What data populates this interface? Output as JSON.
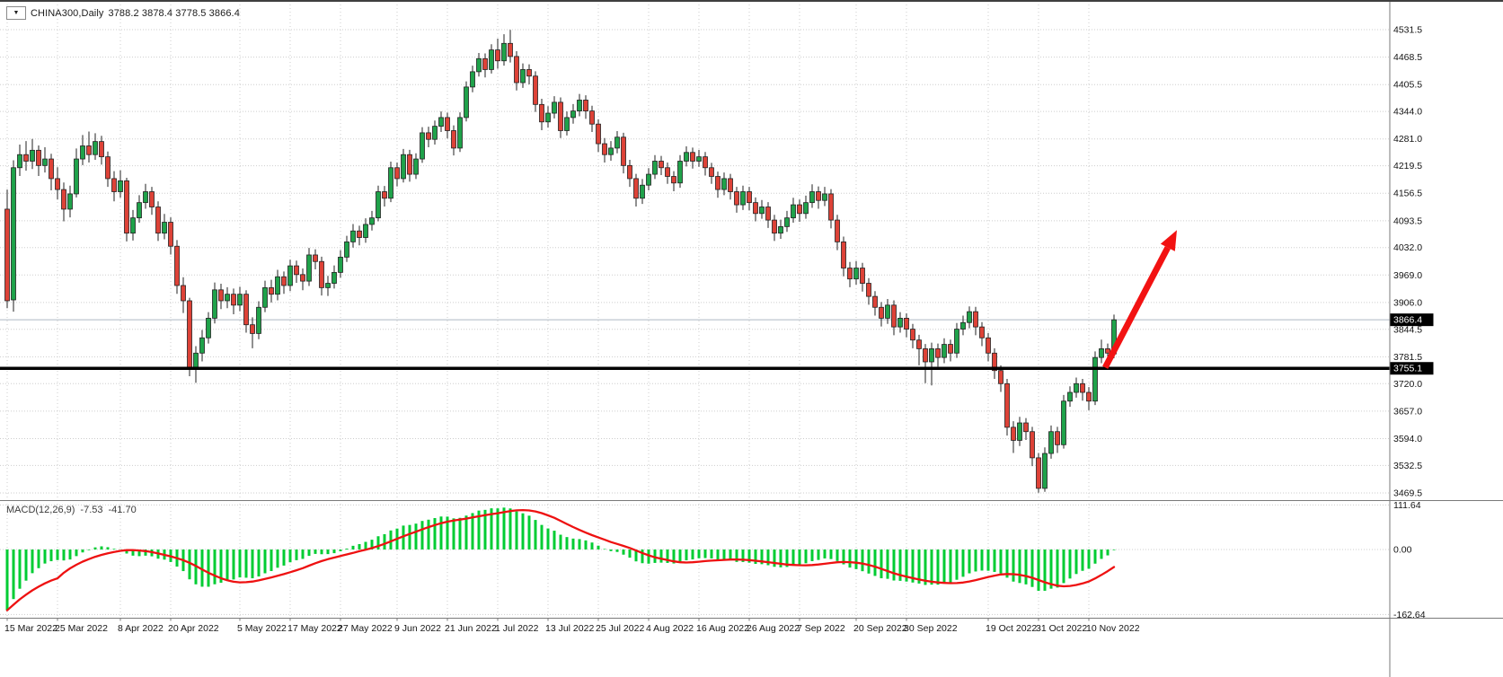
{
  "symbol_bar": {
    "dropdown_icon": "▼",
    "symbol_label": "CHINA300,Daily",
    "ohlc_text": "3788.2 3878.4 3778.5 3866.4"
  },
  "macd_panel": {
    "label": "MACD(12,26,9)",
    "main_value": "-7.53",
    "signal_value": "-41.70",
    "axis_ticks": [
      "111.64",
      "0.00",
      "-162.64"
    ]
  },
  "price_markers": {
    "current_badge": "3866.4",
    "support_badge": "3755.1"
  },
  "colors": {
    "bull": "#1fa24a",
    "bear": "#dd4237",
    "candle_outline": "#222222",
    "grid": "#cdcdcd",
    "separator": "#7a7a7a",
    "axis_text": "#141414",
    "badge_bg": "#000000",
    "badge_text": "#ffffff",
    "macd_hist": "#00cc33",
    "macd_signal": "#ee1111",
    "support_line": "#000000",
    "current_price_line": "#aeb9c3",
    "arrow": "#f21212"
  },
  "chart_data": {
    "type": "candlestick",
    "title": "CHINA300 Daily",
    "timeframe": "Daily",
    "y_range": [
      3469.5,
      4531.5
    ],
    "grid": true,
    "current_price": 3866.4,
    "support_level": 3755.1,
    "y_tick_labels": [
      "4531.5",
      "4468.5",
      "4405.5",
      "4344.0",
      "4281.0",
      "4219.5",
      "4156.5",
      "4093.5",
      "4032.0",
      "3969.0",
      "3906.0",
      "3844.5",
      "3781.5",
      "3720.0",
      "3657.0",
      "3594.0",
      "3532.5",
      "3469.5"
    ],
    "x_tick_labels": [
      {
        "i": 0,
        "label": "15 Mar 2022"
      },
      {
        "i": 8,
        "label": "25 Mar 2022"
      },
      {
        "i": 18,
        "label": "8 Apr 2022"
      },
      {
        "i": 26,
        "label": "20 Apr 2022"
      },
      {
        "i": 37,
        "label": "5 May 2022"
      },
      {
        "i": 45,
        "label": "17 May 2022"
      },
      {
        "i": 53,
        "label": "27 May 2022"
      },
      {
        "i": 62,
        "label": "9 Jun 2022"
      },
      {
        "i": 70,
        "label": "21 Jun 2022"
      },
      {
        "i": 78,
        "label": "1 Jul 2022"
      },
      {
        "i": 86,
        "label": "13 Jul 2022"
      },
      {
        "i": 94,
        "label": "25 Jul 2022"
      },
      {
        "i": 102,
        "label": "4 Aug 2022"
      },
      {
        "i": 110,
        "label": "16 Aug 2022"
      },
      {
        "i": 118,
        "label": "26 Aug 2022"
      },
      {
        "i": 126,
        "label": "7 Sep 2022"
      },
      {
        "i": 135,
        "label": "20 Sep 2022"
      },
      {
        "i": 143,
        "label": "30 Sep 2022"
      },
      {
        "i": 156,
        "label": "19 Oct 2022"
      },
      {
        "i": 164,
        "label": "31 Oct 2022"
      },
      {
        "i": 172,
        "label": "10 Nov 2022"
      }
    ],
    "indicator": {
      "type": "MACD",
      "fast": 12,
      "slow": 26,
      "signal": 9,
      "last_main": -7.53,
      "last_signal": -41.7,
      "seed_ema12": 4020,
      "seed_ema26": 4175,
      "macd_axis": [
        111.64,
        0.0,
        -162.64
      ]
    },
    "annotation_arrow": {
      "from": {
        "i": 174.6,
        "price": 3757
      },
      "to": {
        "i": 186,
        "price": 4072
      }
    },
    "ohlc": [
      [
        4120,
        4165,
        3893,
        3910
      ],
      [
        3912,
        4232,
        3885,
        4215
      ],
      [
        4215,
        4268,
        4196,
        4245
      ],
      [
        4245,
        4276,
        4208,
        4230
      ],
      [
        4230,
        4281,
        4212,
        4255
      ],
      [
        4255,
        4266,
        4196,
        4220
      ],
      [
        4220,
        4262,
        4204,
        4235
      ],
      [
        4235,
        4247,
        4163,
        4190
      ],
      [
        4190,
        4216,
        4142,
        4165
      ],
      [
        4165,
        4181,
        4092,
        4120
      ],
      [
        4120,
        4174,
        4101,
        4155
      ],
      [
        4155,
        4259,
        4147,
        4235
      ],
      [
        4235,
        4290,
        4221,
        4265
      ],
      [
        4265,
        4298,
        4227,
        4245
      ],
      [
        4245,
        4294,
        4233,
        4275
      ],
      [
        4275,
        4288,
        4222,
        4240
      ],
      [
        4240,
        4252,
        4171,
        4190
      ],
      [
        4190,
        4207,
        4138,
        4160
      ],
      [
        4160,
        4209,
        4146,
        4185
      ],
      [
        4185,
        4192,
        4046,
        4065
      ],
      [
        4065,
        4118,
        4048,
        4100
      ],
      [
        4100,
        4152,
        4089,
        4135
      ],
      [
        4135,
        4178,
        4121,
        4160
      ],
      [
        4160,
        4171,
        4107,
        4125
      ],
      [
        4125,
        4138,
        4047,
        4065
      ],
      [
        4065,
        4109,
        4051,
        4090
      ],
      [
        4090,
        4101,
        4016,
        4035
      ],
      [
        4035,
        4049,
        3926,
        3945
      ],
      [
        3945,
        3964,
        3882,
        3910
      ],
      [
        3910,
        3917,
        3737,
        3755
      ],
      [
        3755,
        3806,
        3722,
        3790
      ],
      [
        3790,
        3843,
        3771,
        3825
      ],
      [
        3825,
        3884,
        3812,
        3870
      ],
      [
        3870,
        3952,
        3858,
        3935
      ],
      [
        3935,
        3949,
        3891,
        3910
      ],
      [
        3910,
        3941,
        3893,
        3925
      ],
      [
        3925,
        3938,
        3879,
        3900
      ],
      [
        3900,
        3942,
        3886,
        3925
      ],
      [
        3925,
        3934,
        3837,
        3855
      ],
      [
        3855,
        3872,
        3801,
        3835
      ],
      [
        3835,
        3909,
        3822,
        3895
      ],
      [
        3895,
        3956,
        3884,
        3940
      ],
      [
        3940,
        3958,
        3906,
        3925
      ],
      [
        3925,
        3981,
        3911,
        3965
      ],
      [
        3965,
        3977,
        3926,
        3945
      ],
      [
        3945,
        4004,
        3932,
        3990
      ],
      [
        3990,
        4002,
        3951,
        3970
      ],
      [
        3970,
        3984,
        3934,
        3955
      ],
      [
        3955,
        4031,
        3944,
        4015
      ],
      [
        4015,
        4028,
        3982,
        4000
      ],
      [
        4000,
        4011,
        3922,
        3940
      ],
      [
        3940,
        3967,
        3921,
        3950
      ],
      [
        3950,
        3991,
        3938,
        3975
      ],
      [
        3975,
        4026,
        3963,
        4010
      ],
      [
        4010,
        4059,
        3999,
        4045
      ],
      [
        4045,
        4086,
        4032,
        4070
      ],
      [
        4070,
        4082,
        4037,
        4055
      ],
      [
        4055,
        4099,
        4043,
        4085
      ],
      [
        4085,
        4116,
        4071,
        4100
      ],
      [
        4100,
        4174,
        4092,
        4160
      ],
      [
        4160,
        4173,
        4126,
        4145
      ],
      [
        4145,
        4229,
        4136,
        4215
      ],
      [
        4215,
        4227,
        4172,
        4190
      ],
      [
        4190,
        4258,
        4181,
        4245
      ],
      [
        4245,
        4256,
        4183,
        4200
      ],
      [
        4200,
        4248,
        4189,
        4235
      ],
      [
        4235,
        4308,
        4226,
        4295
      ],
      [
        4295,
        4309,
        4262,
        4280
      ],
      [
        4280,
        4323,
        4268,
        4310
      ],
      [
        4310,
        4344,
        4297,
        4330
      ],
      [
        4330,
        4341,
        4282,
        4300
      ],
      [
        4300,
        4312,
        4243,
        4260
      ],
      [
        4260,
        4342,
        4251,
        4330
      ],
      [
        4330,
        4413,
        4321,
        4400
      ],
      [
        4400,
        4449,
        4388,
        4435
      ],
      [
        4435,
        4478,
        4424,
        4465
      ],
      [
        4465,
        4477,
        4422,
        4440
      ],
      [
        4440,
        4498,
        4431,
        4485
      ],
      [
        4485,
        4511,
        4442,
        4460
      ],
      [
        4460,
        4521,
        4449,
        4500
      ],
      [
        4500,
        4531,
        4456,
        4470
      ],
      [
        4470,
        4482,
        4392,
        4410
      ],
      [
        4410,
        4454,
        4398,
        4440
      ],
      [
        4440,
        4452,
        4406,
        4425
      ],
      [
        4425,
        4436,
        4343,
        4360
      ],
      [
        4360,
        4373,
        4301,
        4320
      ],
      [
        4320,
        4356,
        4307,
        4340
      ],
      [
        4340,
        4379,
        4328,
        4365
      ],
      [
        4365,
        4376,
        4283,
        4300
      ],
      [
        4300,
        4344,
        4289,
        4330
      ],
      [
        4330,
        4361,
        4316,
        4345
      ],
      [
        4345,
        4384,
        4333,
        4370
      ],
      [
        4370,
        4381,
        4327,
        4345
      ],
      [
        4345,
        4357,
        4297,
        4315
      ],
      [
        4315,
        4326,
        4251,
        4270
      ],
      [
        4270,
        4283,
        4227,
        4245
      ],
      [
        4245,
        4276,
        4231,
        4260
      ],
      [
        4260,
        4299,
        4248,
        4285
      ],
      [
        4285,
        4295,
        4202,
        4220
      ],
      [
        4220,
        4233,
        4171,
        4190
      ],
      [
        4190,
        4201,
        4126,
        4145
      ],
      [
        4145,
        4189,
        4132,
        4175
      ],
      [
        4175,
        4214,
        4163,
        4200
      ],
      [
        4200,
        4244,
        4189,
        4230
      ],
      [
        4230,
        4242,
        4198,
        4215
      ],
      [
        4215,
        4227,
        4178,
        4195
      ],
      [
        4195,
        4207,
        4161,
        4180
      ],
      [
        4180,
        4244,
        4169,
        4230
      ],
      [
        4230,
        4264,
        4218,
        4250
      ],
      [
        4250,
        4261,
        4213,
        4230
      ],
      [
        4230,
        4256,
        4217,
        4240
      ],
      [
        4240,
        4251,
        4197,
        4215
      ],
      [
        4215,
        4226,
        4178,
        4195
      ],
      [
        4195,
        4206,
        4146,
        4165
      ],
      [
        4165,
        4204,
        4152,
        4190
      ],
      [
        4190,
        4201,
        4142,
        4160
      ],
      [
        4160,
        4171,
        4112,
        4130
      ],
      [
        4130,
        4174,
        4118,
        4160
      ],
      [
        4160,
        4171,
        4117,
        4135
      ],
      [
        4135,
        4147,
        4092,
        4110
      ],
      [
        4110,
        4141,
        4098,
        4125
      ],
      [
        4125,
        4136,
        4077,
        4095
      ],
      [
        4095,
        4107,
        4047,
        4065
      ],
      [
        4065,
        4096,
        4052,
        4080
      ],
      [
        4080,
        4116,
        4068,
        4100
      ],
      [
        4100,
        4146,
        4089,
        4130
      ],
      [
        4130,
        4142,
        4091,
        4110
      ],
      [
        4110,
        4151,
        4098,
        4135
      ],
      [
        4135,
        4177,
        4123,
        4160
      ],
      [
        4160,
        4172,
        4121,
        4140
      ],
      [
        4140,
        4171,
        4127,
        4155
      ],
      [
        4155,
        4166,
        4076,
        4095
      ],
      [
        4095,
        4107,
        4026,
        4045
      ],
      [
        4045,
        4057,
        3966,
        3985
      ],
      [
        3985,
        3999,
        3941,
        3960
      ],
      [
        3960,
        4001,
        3947,
        3985
      ],
      [
        3985,
        3997,
        3931,
        3950
      ],
      [
        3950,
        3962,
        3901,
        3920
      ],
      [
        3920,
        3932,
        3876,
        3895
      ],
      [
        3895,
        3907,
        3851,
        3870
      ],
      [
        3870,
        3914,
        3857,
        3900
      ],
      [
        3900,
        3911,
        3831,
        3850
      ],
      [
        3850,
        3884,
        3837,
        3870
      ],
      [
        3870,
        3881,
        3826,
        3845
      ],
      [
        3845,
        3857,
        3801,
        3820
      ],
      [
        3820,
        3832,
        3762,
        3800
      ],
      [
        3800,
        3811,
        3721,
        3770
      ],
      [
        3770,
        3814,
        3716,
        3800
      ],
      [
        3800,
        3812,
        3759,
        3780
      ],
      [
        3780,
        3824,
        3767,
        3810
      ],
      [
        3810,
        3821,
        3771,
        3790
      ],
      [
        3790,
        3859,
        3779,
        3845
      ],
      [
        3845,
        3876,
        3831,
        3860
      ],
      [
        3860,
        3897,
        3847,
        3885
      ],
      [
        3885,
        3896,
        3831,
        3850
      ],
      [
        3850,
        3861,
        3806,
        3825
      ],
      [
        3825,
        3836,
        3771,
        3790
      ],
      [
        3790,
        3801,
        3731,
        3750
      ],
      [
        3750,
        3762,
        3701,
        3720
      ],
      [
        3720,
        3731,
        3601,
        3620
      ],
      [
        3620,
        3634,
        3561,
        3590
      ],
      [
        3590,
        3644,
        3577,
        3630
      ],
      [
        3630,
        3641,
        3591,
        3610
      ],
      [
        3610,
        3621,
        3531,
        3550
      ],
      [
        3550,
        3561,
        3470,
        3480
      ],
      [
        3480,
        3574,
        3472,
        3560
      ],
      [
        3560,
        3624,
        3548,
        3610
      ],
      [
        3610,
        3621,
        3561,
        3580
      ],
      [
        3580,
        3694,
        3571,
        3680
      ],
      [
        3680,
        3714,
        3667,
        3700
      ],
      [
        3700,
        3734,
        3688,
        3720
      ],
      [
        3720,
        3731,
        3681,
        3700
      ],
      [
        3700,
        3712,
        3659,
        3680
      ],
      [
        3680,
        3794,
        3671,
        3780
      ],
      [
        3780,
        3821,
        3767,
        3800
      ],
      [
        3800,
        3812,
        3762,
        3790
      ],
      [
        3788.2,
        3878.4,
        3778.5,
        3866.4
      ]
    ]
  }
}
